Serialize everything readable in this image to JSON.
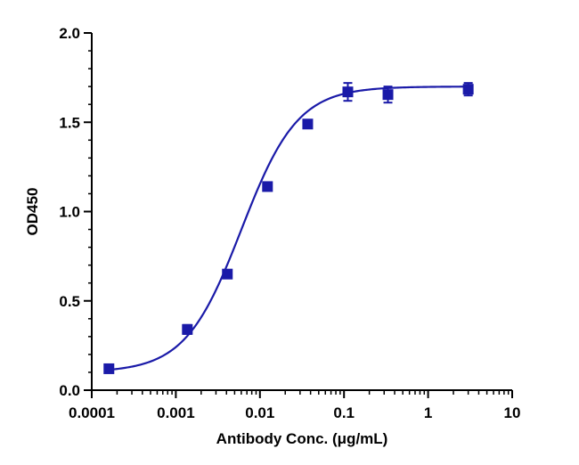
{
  "chart_data": {
    "type": "scatter",
    "title": "",
    "xlabel": "Antibody Conc. (μg/mL)",
    "ylabel": "OD450",
    "x_scale": "log",
    "xlim": [
      0.0001,
      10
    ],
    "ylim": [
      0,
      2.0
    ],
    "x_ticks": [
      {
        "value": 0.0001,
        "label": "0.0001"
      },
      {
        "value": 0.001,
        "label": "0.001"
      },
      {
        "value": 0.01,
        "label": "0.01"
      },
      {
        "value": 0.1,
        "label": "0.1"
      },
      {
        "value": 1,
        "label": "1"
      },
      {
        "value": 10,
        "label": "10"
      }
    ],
    "y_ticks": [
      {
        "value": 0,
        "label": "0.0"
      },
      {
        "value": 0.5,
        "label": "0.5"
      },
      {
        "value": 1.0,
        "label": "1.0"
      },
      {
        "value": 1.5,
        "label": "1.5"
      },
      {
        "value": 2.0,
        "label": "2.0"
      }
    ],
    "grid": false,
    "legend": "none",
    "color": "#1a1aa8",
    "series": [
      {
        "marker": "square",
        "points": [
          {
            "x": 0.00016,
            "y": 0.12,
            "err": 0.0
          },
          {
            "x": 0.00137,
            "y": 0.34,
            "err": 0.025
          },
          {
            "x": 0.0041,
            "y": 0.65,
            "err": 0.0
          },
          {
            "x": 0.0123,
            "y": 1.14,
            "err": 0.02
          },
          {
            "x": 0.037,
            "y": 1.49,
            "err": 0.0
          },
          {
            "x": 0.111,
            "y": 1.67,
            "err": 0.05
          },
          {
            "x": 0.333,
            "y": 1.655,
            "err": 0.045
          },
          {
            "x": 3.0,
            "y": 1.685,
            "err": 0.035
          }
        ]
      }
    ],
    "fit": {
      "type": "4PL",
      "bottom": 0.1,
      "top": 1.7,
      "logEC50": -2.22,
      "hill": 1.3,
      "x_range": [
        0.00016,
        3.0
      ]
    }
  }
}
